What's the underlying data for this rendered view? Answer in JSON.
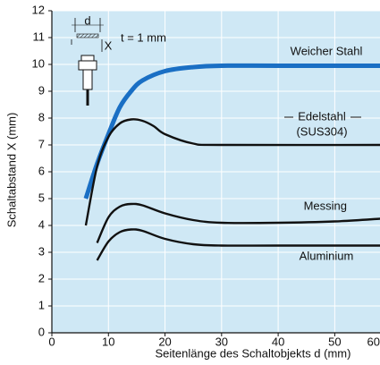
{
  "chart_data": {
    "type": "line",
    "y_label": "Schaltabstand X (mm)",
    "x_label": "Seitenlänge des Schaltobjekts d (mm)",
    "xlim": [
      0,
      58
    ],
    "ylim": [
      0,
      12
    ],
    "xticks": [
      0,
      10,
      20,
      30,
      40,
      50,
      60
    ],
    "yticks": [
      0,
      1,
      2,
      3,
      4,
      5,
      6,
      7,
      8,
      9,
      10,
      11,
      12
    ],
    "grid": true,
    "background": "#cfe8f5",
    "series": [
      {
        "name": "Weicher Stahl",
        "color": "#1a6fc4",
        "x": [
          6,
          8,
          10,
          12,
          14,
          16,
          20,
          25,
          30,
          40,
          58
        ],
        "values": [
          5.0,
          6.3,
          7.4,
          8.4,
          9.0,
          9.4,
          9.75,
          9.9,
          9.95,
          9.95,
          9.95
        ]
      },
      {
        "name": "Edelstahl",
        "color": "#111111",
        "x": [
          6,
          8,
          10,
          12,
          14,
          16,
          18,
          20,
          25,
          30,
          58
        ],
        "values": [
          4.0,
          6.2,
          7.3,
          7.8,
          7.95,
          7.9,
          7.7,
          7.4,
          7.05,
          7.0,
          7.0
        ]
      },
      {
        "name": "Messing",
        "color": "#111111",
        "x": [
          8,
          10,
          12,
          14,
          16,
          20,
          25,
          30,
          40,
          50,
          58
        ],
        "values": [
          3.35,
          4.3,
          4.7,
          4.8,
          4.75,
          4.45,
          4.2,
          4.1,
          4.1,
          4.15,
          4.25
        ]
      },
      {
        "name": "Aluminium",
        "color": "#111111",
        "x": [
          8,
          10,
          12,
          14,
          16,
          20,
          25,
          30,
          40,
          58
        ],
        "values": [
          2.7,
          3.4,
          3.75,
          3.85,
          3.8,
          3.5,
          3.3,
          3.25,
          3.25,
          3.25
        ]
      }
    ],
    "annotations": [
      "(SUS304)",
      "t = 1 mm",
      "d",
      "X"
    ]
  }
}
